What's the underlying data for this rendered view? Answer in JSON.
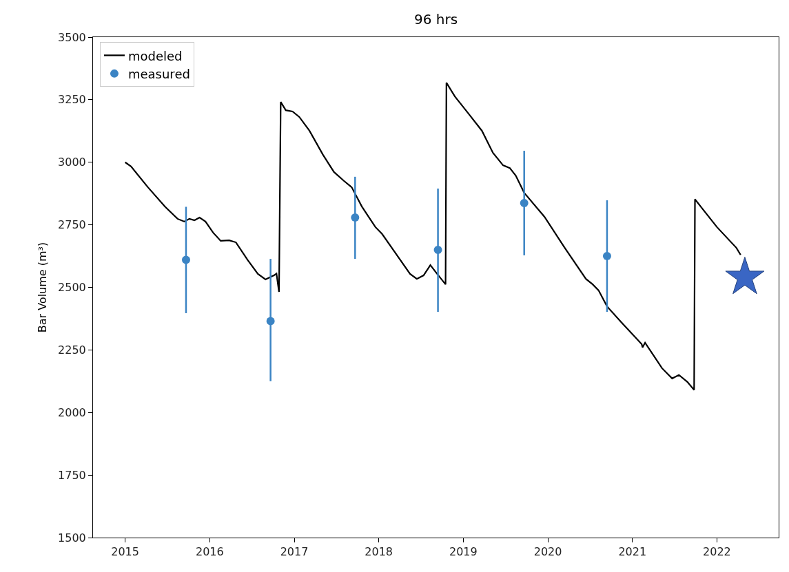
{
  "chart_data": {
    "type": "line",
    "title": "96 hrs",
    "ylabel": "Bar Volume (m³)",
    "xlim": [
      2014.62,
      2022.73
    ],
    "xticks": [
      2015,
      2016,
      2017,
      2018,
      2019,
      2020,
      2021,
      2022
    ],
    "ylim": [
      1500,
      3500
    ],
    "yticks": [
      1500,
      1750,
      2000,
      2250,
      2500,
      2750,
      3000,
      3250,
      3500
    ],
    "grid": false,
    "legend": "top left",
    "series": [
      {
        "name": "modeled",
        "marker": "none",
        "line_style": "solid",
        "color": "#000000",
        "x": [
          2015.0,
          2015.07,
          2015.27,
          2015.47,
          2015.62,
          2015.7,
          2015.76,
          2015.82,
          2015.88,
          2015.95,
          2016.04,
          2016.13,
          2016.23,
          2016.31,
          2016.45,
          2016.57,
          2016.66,
          2016.76,
          2016.79,
          2016.82,
          2016.84,
          2016.9,
          2016.98,
          2017.06,
          2017.18,
          2017.34,
          2017.47,
          2017.59,
          2017.68,
          2017.8,
          2017.96,
          2018.04,
          2018.21,
          2018.37,
          2018.45,
          2018.53,
          2018.61,
          2018.69,
          2018.79,
          2018.8,
          2018.9,
          2019.06,
          2019.22,
          2019.35,
          2019.47,
          2019.55,
          2019.62,
          2019.72,
          2019.96,
          2020.2,
          2020.45,
          2020.53,
          2020.6,
          2020.7,
          2020.86,
          2021.11,
          2021.12,
          2021.15,
          2021.35,
          2021.47,
          2021.55,
          2021.65,
          2021.73,
          2021.74,
          2022.0,
          2022.23,
          2022.28
        ],
        "values": [
          3000,
          2983,
          2900,
          2823,
          2774,
          2763,
          2774,
          2768,
          2779,
          2763,
          2719,
          2686,
          2688,
          2680,
          2609,
          2554,
          2532,
          2548,
          2555,
          2482,
          3241,
          3208,
          3203,
          3181,
          3126,
          3030,
          2961,
          2925,
          2900,
          2823,
          2741,
          2713,
          2631,
          2554,
          2534,
          2548,
          2589,
          2554,
          2512,
          3318,
          3263,
          3195,
          3126,
          3038,
          2988,
          2977,
          2947,
          2878,
          2782,
          2658,
          2534,
          2512,
          2488,
          2424,
          2364,
          2273,
          2260,
          2279,
          2177,
          2136,
          2150,
          2122,
          2090,
          2852,
          2741,
          2658,
          2630
        ]
      },
      {
        "name": "measured",
        "type": "scatter",
        "marker": "circle",
        "color": "#3b84c4",
        "x": [
          2015.72,
          2016.72,
          2017.72,
          2018.7,
          2019.72,
          2020.7
        ],
        "values": [
          2610,
          2365,
          2779,
          2650,
          2837,
          2625
        ],
        "errors": [
          [
            2397,
            2822
          ],
          [
            2125,
            2614
          ],
          [
            2614,
            2942
          ],
          [
            2402,
            2895
          ],
          [
            2628,
            3046
          ],
          [
            2402,
            2848
          ]
        ]
      },
      {
        "type": "scatter",
        "marker": "star",
        "color": "#3a66c4",
        "x": [
          2022.33
        ],
        "values": [
          2540
        ]
      }
    ]
  }
}
